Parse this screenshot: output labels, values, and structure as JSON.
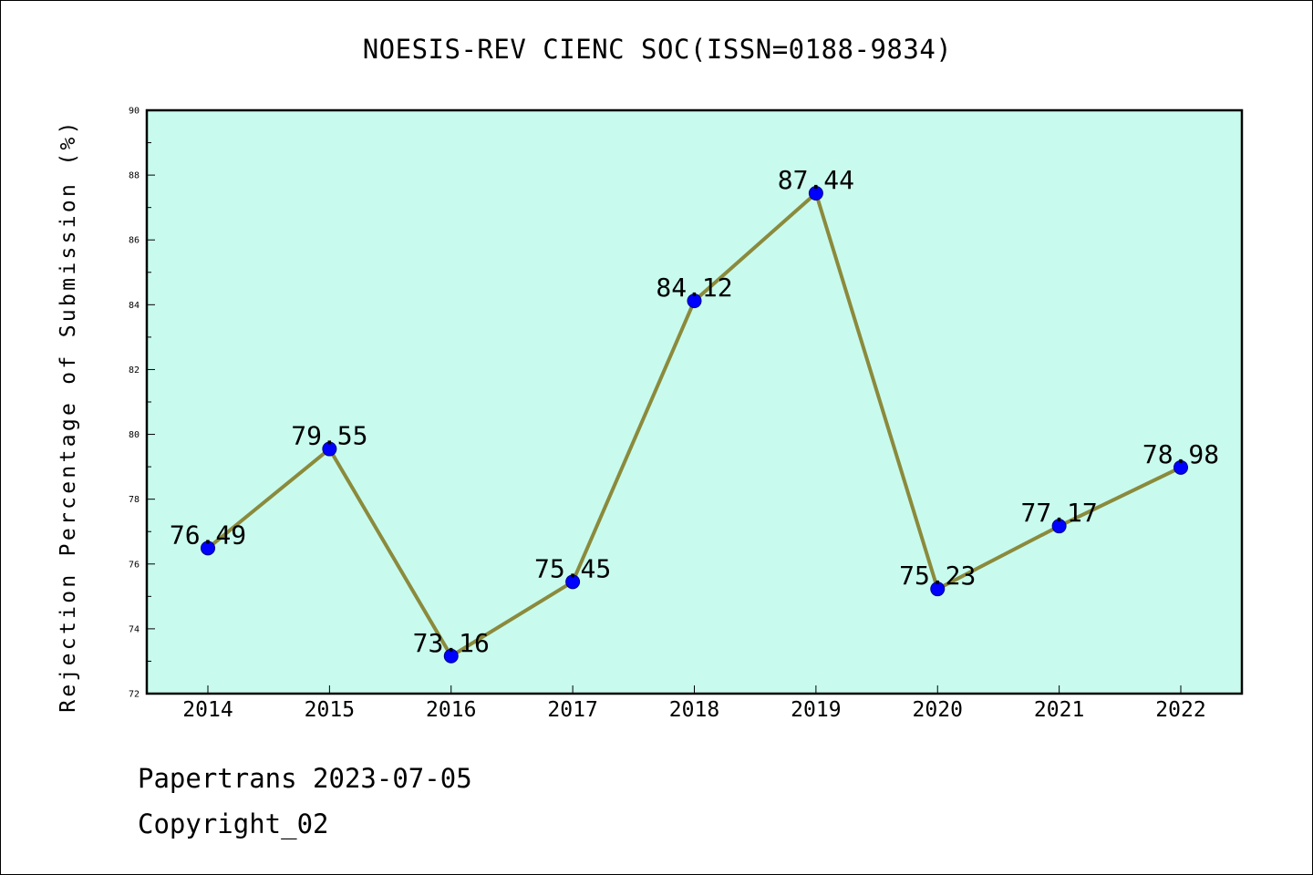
{
  "chart_data": {
    "type": "line",
    "title": "NOESIS-REV CIENC SOC(ISSN=0188-9834)",
    "xlabel": "",
    "ylabel": "Rejection Percentage of Submission (%)",
    "categories": [
      "2014",
      "2015",
      "2016",
      "2017",
      "2018",
      "2019",
      "2020",
      "2021",
      "2022"
    ],
    "values": [
      76.49,
      79.55,
      73.16,
      75.45,
      84.12,
      87.44,
      75.23,
      77.17,
      78.98
    ],
    "value_labels": [
      "76.49",
      "79.55",
      "73.16",
      "75.45",
      "84.12",
      "87.44",
      "75.23",
      "77.17",
      "78.98"
    ],
    "ylim": [
      72,
      90
    ],
    "yticks": [
      72,
      74,
      76,
      78,
      80,
      82,
      84,
      86,
      88,
      90
    ],
    "ytick_labels": [
      "72",
      "74",
      "76",
      "78",
      "80",
      "82",
      "84",
      "86",
      "88",
      "90"
    ],
    "grid": false,
    "colors": {
      "plot_background": "#c8fbee",
      "line": "#8b8a3c",
      "marker_fill": "#0000ff",
      "marker_edge": "#00008b",
      "axis": "#000000"
    }
  },
  "footer": {
    "line1": "Papertrans 2023-07-05",
    "line2": "Copyright_02"
  }
}
